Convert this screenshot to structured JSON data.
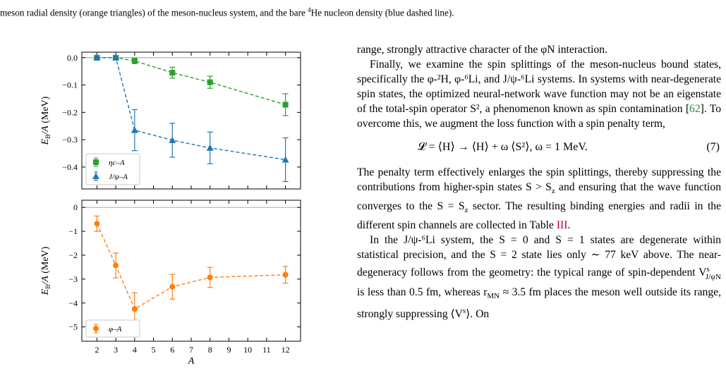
{
  "caption_tail": {
    "before": "meson radial density (orange triangles) of the meson-nucleus system, and the bare ",
    "sup": "4",
    "after": "He nucleon density (blue dashed line)."
  },
  "text": {
    "p0": "range, strongly attractive character of the φN interaction.",
    "p1": "Finally, we examine the spin splittings of the meson-nucleus bound states, specifically the φ-²H, φ-⁶Li, and J/ψ-⁶Li systems. In systems with near-degenerate spin states, the optimized neural-network wave function may not be an eigenstate of the total-spin operator S², a phenomenon known as spin contamination [62]. To overcome this, we augment the loss function with a spin penalty term,",
    "p1_ref": "62",
    "equation": "𝓛 = ⟨H⟩  →  ⟨H⟩ + ω ⟨S²⟩,    ω = 1 MeV.",
    "equation_number": "(7)",
    "p2_a": "The penalty term effectively enlarges the spin splittings, thereby suppressing the contributions from higher-spin states S > S",
    "p2_b": "z",
    "p2_c": " and ensuring that the wave function converges to the S = S",
    "p2_d": "z",
    "p2_e": " sector. The resulting binding energies and radii in the different spin channels are collected in Table ",
    "p2_ref": "III",
    "p2_f": ".",
    "p3": "In the J/ψ-⁶Li system, the S = 0 and S = 1 states are degenerate within statistical precision, and the S = 2 state lies only ∼ 77 keV above. The near-degeneracy follows from the geometry: the typical range of spin-dependent V",
    "p3_sup": "s",
    "p3_sub": "J/ψN",
    "p3_b": " is less than 0.5 fm, whereas r",
    "p3_sub2": "MN",
    "p3_c": " ≈ 3.5 fm places the meson well outside its range, strongly suppressing ⟨V",
    "p3_d": "s",
    "p3_e": "⟩. On"
  },
  "chart_data": [
    {
      "type": "scatter",
      "ylabel": "E_B/A (MeV)",
      "xlabel": "",
      "ylim": [
        -0.48,
        0.02
      ],
      "xlim": [
        1.2,
        12.8
      ],
      "yticks": [
        0.0,
        -0.1,
        -0.2,
        -0.3,
        -0.4
      ],
      "ytick_labels": [
        "0.0",
        "−0.1",
        "−0.2",
        "−0.3",
        "−0.4"
      ],
      "legend_position": "lower-left",
      "series": [
        {
          "name": "ηc–A",
          "color": "#2ca02c",
          "marker": "square",
          "x": [
            2,
            3,
            4,
            6,
            8,
            12
          ],
          "y": [
            0.0,
            0.0,
            -0.012,
            -0.055,
            -0.09,
            -0.172
          ],
          "err": [
            0.003,
            0.004,
            0.01,
            0.02,
            0.022,
            0.04
          ]
        },
        {
          "name": "J/ψ–A",
          "color": "#1f77b4",
          "marker": "triangle",
          "x": [
            2,
            3,
            4,
            6,
            8,
            12
          ],
          "y": [
            0.0,
            0.0,
            -0.265,
            -0.302,
            -0.33,
            -0.373
          ],
          "err": [
            0.003,
            0.004,
            0.075,
            0.062,
            0.058,
            0.08
          ]
        }
      ]
    },
    {
      "type": "scatter",
      "ylabel": "E_B/A (MeV)",
      "xlabel": "A",
      "ylim": [
        -5.6,
        0.3
      ],
      "xlim": [
        1.2,
        12.8
      ],
      "yticks": [
        0,
        -1,
        -2,
        -3,
        -4,
        -5
      ],
      "ytick_labels": [
        "0",
        "−1",
        "−2",
        "−3",
        "−4",
        "−5"
      ],
      "xticks": [
        2,
        3,
        4,
        5,
        6,
        7,
        8,
        9,
        10,
        11,
        12
      ],
      "xtick_labels": [
        "2",
        "3",
        "4",
        "5",
        "6",
        "7",
        "8",
        "9",
        "10",
        "11",
        "12"
      ],
      "legend_position": "lower-left",
      "series": [
        {
          "name": "φ–A",
          "color": "#ff7f0e",
          "marker": "circle",
          "x": [
            2,
            3,
            4,
            6,
            8,
            12
          ],
          "y": [
            -0.68,
            -2.43,
            -4.25,
            -3.32,
            -2.93,
            -2.82
          ],
          "err": [
            0.32,
            0.52,
            0.68,
            0.52,
            0.42,
            0.35
          ]
        }
      ]
    }
  ]
}
